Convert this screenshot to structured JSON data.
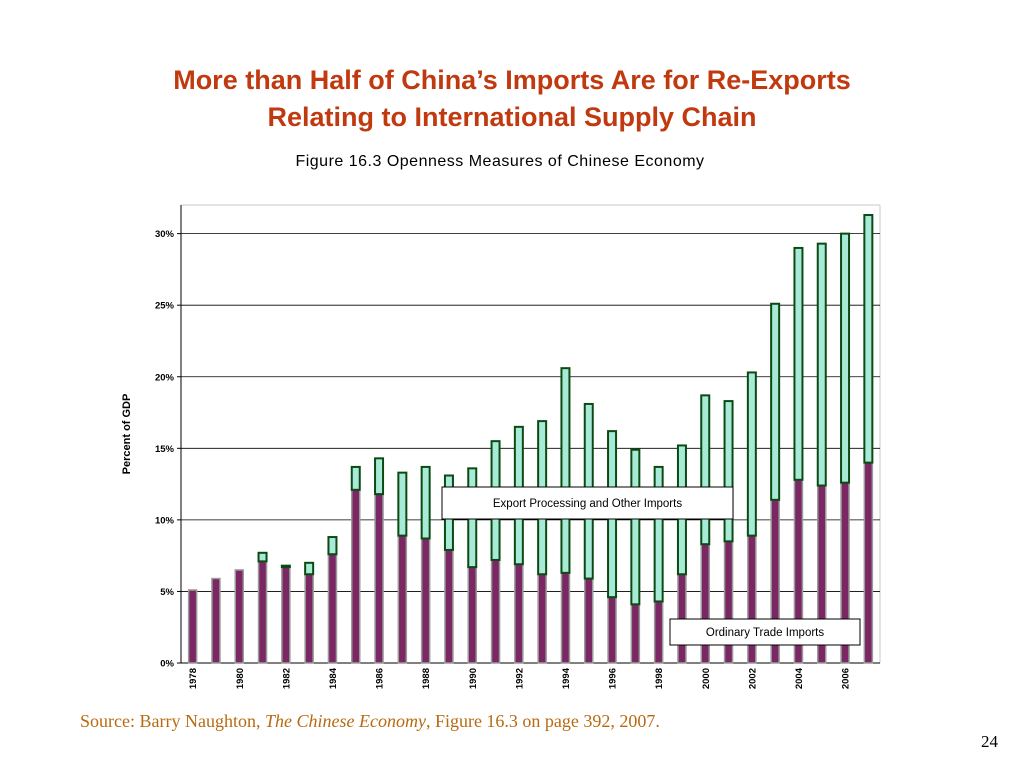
{
  "slide": {
    "title_line1": "More than Half of China’s Imports Are for Re-Exports",
    "title_line2": "Relating to International Supply Chain",
    "page_number": "24"
  },
  "source": {
    "prefix": "Source: Barry Naughton, ",
    "book": "The Chinese Economy",
    "suffix": ", Figure 16.3 on page 392, 2007."
  },
  "colors": {
    "title": "#c0390f",
    "ordinary_fill": "#7b2763",
    "ordinary_stroke": "#9a9a9a",
    "processing_fill": "#a8ead8",
    "processing_stroke": "#0b4a12",
    "source_text": "#b86a10"
  },
  "chart_data": {
    "type": "bar",
    "stacked": true,
    "title": "Figure 16.3  Openness Measures of Chinese Economy",
    "ylabel": "Percent of GDP",
    "xlabel": "",
    "ylim": [
      0,
      32
    ],
    "yticks": [
      0,
      5,
      10,
      15,
      20,
      25,
      30
    ],
    "ytick_labels": [
      "0%",
      "5%",
      "10%",
      "15%",
      "20%",
      "25%",
      "30%"
    ],
    "grid": true,
    "categories": [
      "1978",
      "1979",
      "1980",
      "1981",
      "1982",
      "1983",
      "1984",
      "1985",
      "1986",
      "1987",
      "1988",
      "1989",
      "1990",
      "1991",
      "1992",
      "1993",
      "1994",
      "1995",
      "1996",
      "1997",
      "1998",
      "1999",
      "2000",
      "2001",
      "2002",
      "2003",
      "2004",
      "2005",
      "2006",
      "2007"
    ],
    "xtick_labels": [
      "1978",
      "1980",
      "1982",
      "1984",
      "1986",
      "1988",
      "1990",
      "1992",
      "1994",
      "1996",
      "1998",
      "2000",
      "2002",
      "2004",
      "2006"
    ],
    "series": [
      {
        "name": "Ordinary Trade Imports",
        "values": [
          5.1,
          5.9,
          6.5,
          7.1,
          6.7,
          6.2,
          7.6,
          12.1,
          11.8,
          8.9,
          8.7,
          7.9,
          6.7,
          7.2,
          6.9,
          6.2,
          6.3,
          5.9,
          4.6,
          4.1,
          4.3,
          6.2,
          8.3,
          8.5,
          8.9,
          11.4,
          12.8,
          12.4,
          12.6,
          14.0
        ]
      },
      {
        "name": "Export Processing and Other Imports",
        "values": [
          0,
          0,
          0,
          0.6,
          0.1,
          0.8,
          1.2,
          1.6,
          2.5,
          4.4,
          5.0,
          5.2,
          6.9,
          8.3,
          9.6,
          10.7,
          14.3,
          12.2,
          11.6,
          10.8,
          9.4,
          9.0,
          10.4,
          9.8,
          11.4,
          13.7,
          16.2,
          16.9,
          17.4,
          17.3
        ]
      }
    ],
    "annotations": [
      "Export Processing and Other Imports",
      "Ordinary Trade Imports"
    ]
  }
}
